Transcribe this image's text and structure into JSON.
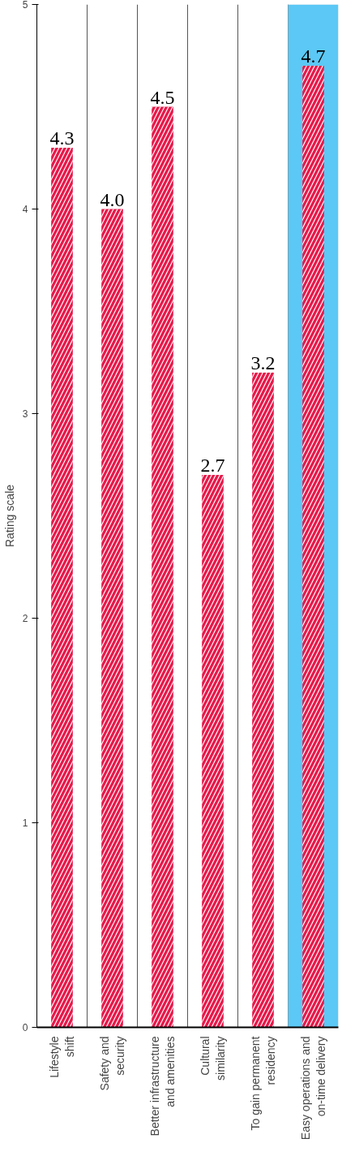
{
  "chart_data": {
    "type": "bar",
    "ylabel": "Rating scale",
    "categories": [
      "Lifestyle\nshift",
      "Safety and\nsecurity",
      "Better infrastructure\nand amenities",
      "Cultural\nsimilarity",
      "To gain permanent\nresidency",
      "Easy operations and\non-time delivery"
    ],
    "values": [
      4.3,
      4.0,
      4.5,
      2.7,
      3.2,
      4.7
    ],
    "value_labels": [
      "4.3",
      "4.0",
      "4.5",
      "2.7",
      "3.2",
      "4.7"
    ],
    "color": "#e8194a",
    "ylim": [
      0,
      5
    ],
    "yticks": [
      0,
      1,
      2,
      3,
      4,
      5
    ],
    "grid": "x",
    "bands": [
      {
        "axis": "x",
        "from": "Easy operations and\non-time delivery",
        "to": "Easy operations and\non-time delivery",
        "color": "#5bc8f5"
      }
    ]
  }
}
